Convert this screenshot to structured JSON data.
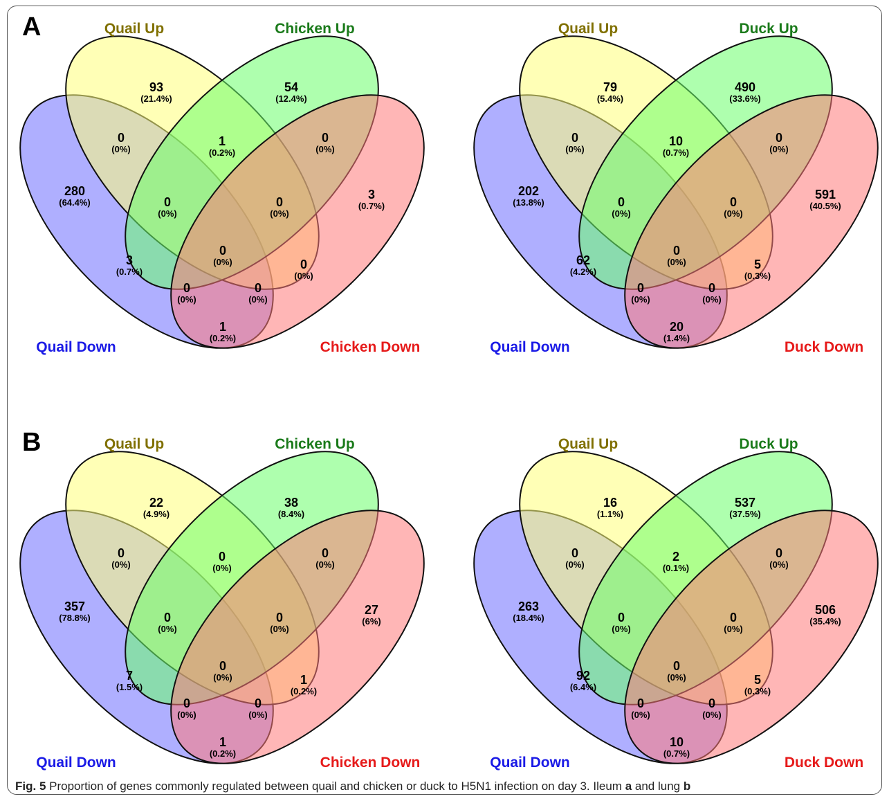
{
  "figure": {
    "panels": [
      {
        "label": "A"
      },
      {
        "label": "B"
      }
    ],
    "caption": {
      "fig_label": "Fig. 5",
      "text_before_a": " Proportion of genes commonly regulated between quail and chicken or duck to H5N1 infection on day 3. Ileum ",
      "a": "a",
      "text_between": " and lung ",
      "b": "b"
    }
  },
  "colors": {
    "set1_fill": "#6d6dff",
    "set2_fill": "#ffff7a",
    "set3_fill": "#6bff6b",
    "set4_fill": "#ff7a7a",
    "set1_label": "#1a1ae6",
    "set2_label": "#807000",
    "set3_label": "#1a7a1a",
    "set4_label": "#e61a1a"
  },
  "diagrams": [
    {
      "set_labels": [
        "Quail Down",
        "Quail Up",
        "Chicken Up",
        "Chicken Down"
      ],
      "regions": {
        "a": {
          "count": "280",
          "pct": "(64.4%)"
        },
        "b": {
          "count": "93",
          "pct": "(21.4%)"
        },
        "c": {
          "count": "54",
          "pct": "(12.4%)"
        },
        "d": {
          "count": "3",
          "pct": "(0.7%)"
        },
        "ab": {
          "count": "0",
          "pct": "(0%)"
        },
        "bc": {
          "count": "1",
          "pct": "(0.2%)"
        },
        "cd": {
          "count": "0",
          "pct": "(0%)"
        },
        "abc": {
          "count": "0",
          "pct": "(0%)"
        },
        "bcd": {
          "count": "0",
          "pct": "(0%)"
        },
        "ac": {
          "count": "3",
          "pct": "(0.7%)"
        },
        "abcd": {
          "count": "0",
          "pct": "(0%)"
        },
        "bd": {
          "count": "0",
          "pct": "(0%)"
        },
        "acd": {
          "count": "0",
          "pct": "(0%)"
        },
        "abd": {
          "count": "0",
          "pct": "(0%)"
        },
        "ad": {
          "count": "1",
          "pct": "(0.2%)"
        }
      }
    },
    {
      "set_labels": [
        "Quail Down",
        "Quail Up",
        "Duck Up",
        "Duck Down"
      ],
      "regions": {
        "a": {
          "count": "202",
          "pct": "(13.8%)"
        },
        "b": {
          "count": "79",
          "pct": "(5.4%)"
        },
        "c": {
          "count": "490",
          "pct": "(33.6%)"
        },
        "d": {
          "count": "591",
          "pct": "(40.5%)"
        },
        "ab": {
          "count": "0",
          "pct": "(0%)"
        },
        "bc": {
          "count": "10",
          "pct": "(0.7%)"
        },
        "cd": {
          "count": "0",
          "pct": "(0%)"
        },
        "abc": {
          "count": "0",
          "pct": "(0%)"
        },
        "bcd": {
          "count": "0",
          "pct": "(0%)"
        },
        "ac": {
          "count": "62",
          "pct": "(4.2%)"
        },
        "abcd": {
          "count": "0",
          "pct": "(0%)"
        },
        "bd": {
          "count": "5",
          "pct": "(0.3%)"
        },
        "acd": {
          "count": "0",
          "pct": "(0%)"
        },
        "abd": {
          "count": "0",
          "pct": "(0%)"
        },
        "ad": {
          "count": "20",
          "pct": "(1.4%)"
        }
      }
    },
    {
      "set_labels": [
        "Quail Down",
        "Quail Up",
        "Chicken Up",
        "Chicken Down"
      ],
      "regions": {
        "a": {
          "count": "357",
          "pct": "(78.8%)"
        },
        "b": {
          "count": "22",
          "pct": "(4.9%)"
        },
        "c": {
          "count": "38",
          "pct": "(8.4%)"
        },
        "d": {
          "count": "27",
          "pct": "(6%)"
        },
        "ab": {
          "count": "0",
          "pct": "(0%)"
        },
        "bc": {
          "count": "0",
          "pct": "(0%)"
        },
        "cd": {
          "count": "0",
          "pct": "(0%)"
        },
        "abc": {
          "count": "0",
          "pct": "(0%)"
        },
        "bcd": {
          "count": "0",
          "pct": "(0%)"
        },
        "ac": {
          "count": "7",
          "pct": "(1.5%)"
        },
        "abcd": {
          "count": "0",
          "pct": "(0%)"
        },
        "bd": {
          "count": "1",
          "pct": "(0.2%)"
        },
        "acd": {
          "count": "0",
          "pct": "(0%)"
        },
        "abd": {
          "count": "0",
          "pct": "(0%)"
        },
        "ad": {
          "count": "1",
          "pct": "(0.2%)"
        }
      }
    },
    {
      "set_labels": [
        "Quail Down",
        "Quail Up",
        "Duck Up",
        "Duck Down"
      ],
      "regions": {
        "a": {
          "count": "263",
          "pct": "(18.4%)"
        },
        "b": {
          "count": "16",
          "pct": "(1.1%)"
        },
        "c": {
          "count": "537",
          "pct": "(37.5%)"
        },
        "d": {
          "count": "506",
          "pct": "(35.4%)"
        },
        "ab": {
          "count": "0",
          "pct": "(0%)"
        },
        "bc": {
          "count": "2",
          "pct": "(0.1%)"
        },
        "cd": {
          "count": "0",
          "pct": "(0%)"
        },
        "abc": {
          "count": "0",
          "pct": "(0%)"
        },
        "bcd": {
          "count": "0",
          "pct": "(0%)"
        },
        "ac": {
          "count": "92",
          "pct": "(6.4%)"
        },
        "abcd": {
          "count": "0",
          "pct": "(0%)"
        },
        "bd": {
          "count": "5",
          "pct": "(0.3%)"
        },
        "acd": {
          "count": "0",
          "pct": "(0%)"
        },
        "abd": {
          "count": "0",
          "pct": "(0%)"
        },
        "ad": {
          "count": "10",
          "pct": "(0.7%)"
        }
      }
    }
  ]
}
